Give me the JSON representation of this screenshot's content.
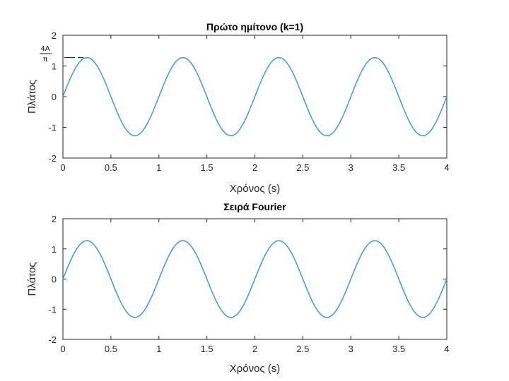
{
  "chart_data": [
    {
      "type": "line",
      "title": "Πρώτο ημίτονο (k=1)",
      "xlabel": "Χρόνος (s)",
      "ylabel": "Πλάτος",
      "xlim": [
        0,
        4
      ],
      "ylim": [
        -2,
        2
      ],
      "xticks": [
        "0",
        "0.5",
        "1",
        "1.5",
        "2",
        "2.5",
        "3",
        "3.5",
        "4"
      ],
      "yticks": [
        "2",
        "1",
        "0",
        "-1",
        "-2"
      ],
      "grid": false,
      "series": [
        {
          "function": "(4/π)·sin(2πt)",
          "amplitude": 1.273,
          "frequency_hz": 1,
          "t_range": [
            0,
            4
          ],
          "color": "#3b9ad9"
        }
      ],
      "annotation": {
        "numerator": "4A",
        "denominator": "π"
      }
    },
    {
      "type": "line",
      "title": "Σειρά Fourier",
      "xlabel": "Χρόνος (s)",
      "ylabel": "Πλάτος",
      "xlim": [
        0,
        4
      ],
      "ylim": [
        -2,
        2
      ],
      "xticks": [
        "0",
        "0.5",
        "1",
        "1.5",
        "2",
        "2.5",
        "3",
        "3.5",
        "4"
      ],
      "yticks": [
        "2",
        "1",
        "0",
        "-1",
        "-2"
      ],
      "grid": false,
      "series": [
        {
          "function": "(4/π)·sin(2πt)",
          "amplitude": 1.273,
          "frequency_hz": 1,
          "t_range": [
            0,
            4
          ],
          "color": "#3b9ad9"
        }
      ]
    }
  ]
}
